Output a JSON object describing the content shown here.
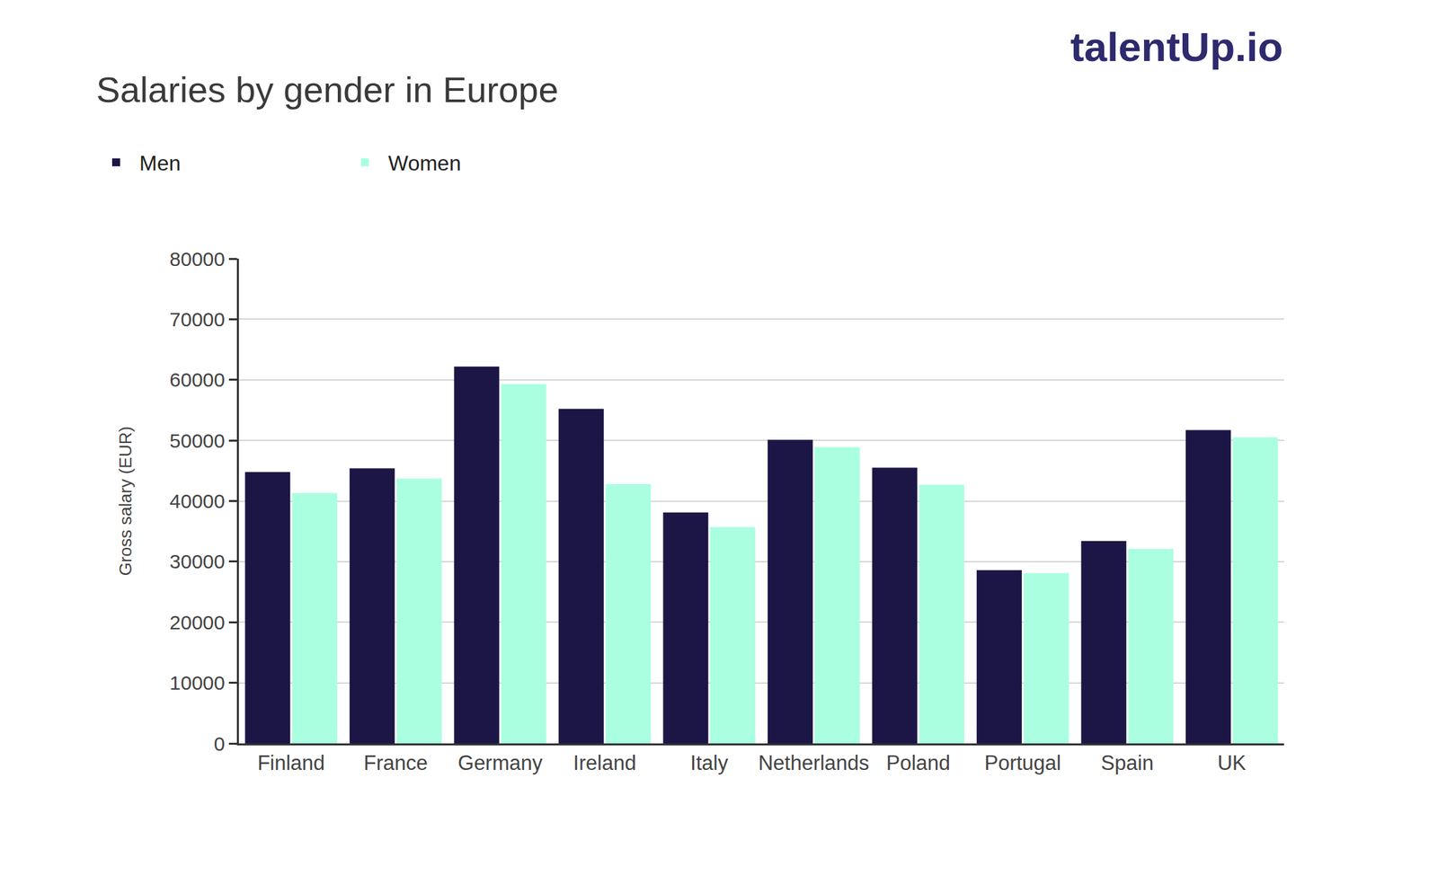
{
  "chart_data": {
    "type": "bar",
    "title": "Salaries by gender in Europe",
    "y_label": "Gross salary (EUR)",
    "annotations": [
      {
        "text": "talentUp.io"
      }
    ],
    "categories": [
      "Finland",
      "France",
      "Germany",
      "Ireland",
      "Italy",
      "Netherlands",
      "Poland",
      "Portugal",
      "Spain",
      "UK"
    ],
    "series": [
      {
        "name": "Men",
        "color": "#1c1646",
        "values": [
          44800,
          45400,
          62200,
          55200,
          38100,
          50100,
          45500,
          28600,
          33400,
          51700
        ]
      },
      {
        "name": "Women",
        "color": "#aaffe0",
        "values": [
          41300,
          43700,
          59300,
          42800,
          35700,
          48900,
          42700,
          28100,
          32100,
          50500
        ]
      }
    ],
    "ylim": [
      0,
      80000
    ],
    "yticks": [
      0,
      10000,
      20000,
      30000,
      40000,
      50000,
      60000,
      70000,
      80000
    ],
    "grid": true,
    "legend": "top left"
  }
}
